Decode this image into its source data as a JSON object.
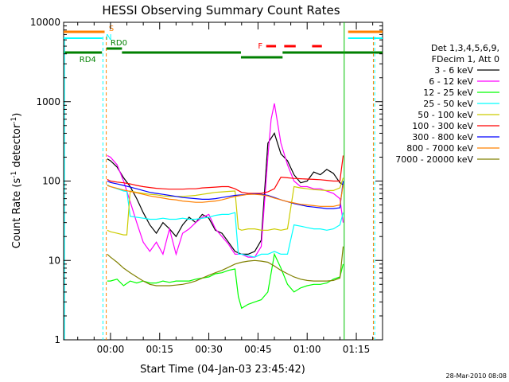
{
  "chart_data": {
    "type": "line",
    "title": "HESSI Observing Summary Count Rates",
    "xlabel": "Start Time (04-Jan-03 23:45:42)",
    "ylabel_main": "Count Rate (s",
    "ylabel_sup1": "-1",
    "ylabel_mid": " detector",
    "ylabel_sup2": "-1",
    "ylabel_end": ")",
    "yscale": "log",
    "ylim": [
      1,
      10000
    ],
    "xlim_minutes": [
      -14.3,
      83
    ],
    "x_ticks": [
      {
        "t": 0,
        "label": "00:00"
      },
      {
        "t": 15,
        "label": "00:15"
      },
      {
        "t": 30,
        "label": "00:30"
      },
      {
        "t": 45,
        "label": "00:45"
      },
      {
        "t": 60,
        "label": "01:00"
      },
      {
        "t": 75,
        "label": "01:15"
      }
    ],
    "y_ticks": [
      {
        "v": 1,
        "label": "1"
      },
      {
        "v": 10,
        "label": "10"
      },
      {
        "v": 100,
        "label": "100"
      },
      {
        "v": 1000,
        "label": "1000"
      },
      {
        "v": 10000,
        "label": "10000"
      }
    ],
    "legend_header": [
      "Det 1,3,4,5,6,9,",
      "FDecim 1, Att 0"
    ],
    "legend_position": "right",
    "series": [
      {
        "name": "3 - 6 keV",
        "color": "#000000",
        "x": [
          -1,
          0,
          2,
          4,
          6,
          8,
          10,
          12,
          14,
          16,
          18,
          20,
          22,
          24,
          26,
          28,
          30,
          32,
          34,
          36,
          38,
          40,
          42,
          44,
          46,
          48,
          50,
          52,
          54,
          56,
          58,
          60,
          62,
          64,
          66,
          68,
          70,
          71
        ],
        "y": [
          190,
          180,
          150,
          110,
          85,
          60,
          40,
          28,
          22,
          30,
          25,
          20,
          28,
          35,
          30,
          38,
          34,
          24,
          22,
          17,
          13,
          12,
          12,
          13,
          18,
          300,
          400,
          220,
          180,
          120,
          95,
          100,
          130,
          120,
          140,
          125,
          95,
          90
        ]
      },
      {
        "name": "6 - 12 keV",
        "color": "#ff00ff",
        "x": [
          -1,
          0,
          2,
          4,
          6,
          8,
          10,
          12,
          14,
          16,
          18,
          20,
          22,
          24,
          26,
          28,
          30,
          32,
          34,
          36,
          38,
          40,
          42,
          44,
          46,
          48,
          49,
          50,
          52,
          54,
          56,
          58,
          60,
          62,
          64,
          66,
          68,
          70,
          71
        ],
        "y": [
          210,
          200,
          160,
          100,
          55,
          30,
          17,
          13,
          17,
          12,
          25,
          12,
          22,
          25,
          30,
          35,
          38,
          25,
          20,
          16,
          12,
          12,
          11,
          11,
          15,
          200,
          600,
          950,
          300,
          160,
          100,
          85,
          85,
          80,
          80,
          75,
          70,
          60,
          30
        ]
      },
      {
        "name": "12 - 25 keV",
        "color": "#00ff00",
        "x": [
          -1,
          0,
          2,
          4,
          6,
          8,
          10,
          12,
          14,
          16,
          18,
          20,
          22,
          24,
          26,
          28,
          30,
          32,
          34,
          36,
          38,
          39,
          40,
          42,
          44,
          46,
          48,
          50,
          52,
          54,
          56,
          58,
          60,
          62,
          64,
          66,
          68,
          70,
          71
        ],
        "y": [
          5.5,
          5.5,
          5.8,
          4.8,
          5.5,
          5.2,
          5.5,
          5.2,
          5.2,
          5.5,
          5.3,
          5.5,
          5.5,
          5.5,
          5.8,
          6,
          6.2,
          6.8,
          7,
          7.5,
          7.8,
          3.5,
          2.5,
          2.8,
          3,
          3.2,
          4,
          12,
          8,
          5,
          4,
          4.5,
          4.8,
          5,
          5,
          5.2,
          5.8,
          6.2,
          9
        ]
      },
      {
        "name": "25 - 50 keV",
        "color": "#00ffff",
        "x": [
          -1,
          0,
          2,
          4,
          5,
          6,
          8,
          10,
          12,
          14,
          16,
          18,
          20,
          22,
          24,
          26,
          28,
          30,
          32,
          34,
          36,
          38,
          39,
          40,
          42,
          44,
          46,
          48,
          50,
          52,
          54,
          56,
          58,
          60,
          62,
          64,
          66,
          68,
          70,
          71
        ],
        "y": [
          90,
          85,
          80,
          75,
          74,
          36,
          35,
          34,
          33,
          33,
          34,
          33,
          33,
          34,
          33,
          33,
          34,
          35,
          37,
          38,
          38,
          40,
          12,
          12,
          11.5,
          11,
          12,
          12,
          13,
          12,
          12,
          28,
          27,
          26,
          25,
          25,
          24,
          25,
          28,
          40
        ]
      },
      {
        "name": "50 - 100 keV",
        "color": "#cccc00",
        "x": [
          -1,
          0,
          2,
          4,
          5,
          6,
          8,
          10,
          12,
          14,
          16,
          18,
          20,
          22,
          24,
          26,
          28,
          30,
          32,
          34,
          36,
          38,
          39,
          40,
          42,
          44,
          46,
          48,
          50,
          52,
          54,
          56,
          58,
          60,
          62,
          64,
          66,
          68,
          70,
          71
        ],
        "y": [
          24,
          23,
          22,
          21,
          21,
          75,
          72,
          70,
          68,
          67,
          65,
          64,
          64,
          64,
          65,
          66,
          68,
          70,
          72,
          73,
          74,
          75,
          25,
          24,
          25,
          25,
          24,
          24,
          25,
          24,
          25,
          85,
          82,
          80,
          78,
          77,
          76,
          76,
          82,
          110
        ]
      },
      {
        "name": "100 - 300 keV",
        "color": "#ff0000",
        "x": [
          -1,
          0,
          2,
          4,
          6,
          8,
          10,
          12,
          14,
          16,
          18,
          20,
          22,
          24,
          26,
          28,
          30,
          32,
          34,
          36,
          38,
          40,
          42,
          44,
          46,
          48,
          50,
          52,
          54,
          56,
          58,
          60,
          62,
          64,
          66,
          68,
          70,
          71
        ],
        "y": [
          105,
          100,
          97,
          95,
          92,
          88,
          85,
          83,
          81,
          80,
          79,
          79,
          79,
          80,
          80,
          82,
          83,
          84,
          85,
          85,
          80,
          72,
          70,
          70,
          70,
          73,
          80,
          112,
          110,
          108,
          107,
          106,
          105,
          104,
          102,
          100,
          100,
          210
        ]
      },
      {
        "name": "300 - 800 keV",
        "color": "#0000ff",
        "x": [
          -1,
          0,
          2,
          4,
          6,
          8,
          10,
          12,
          14,
          16,
          18,
          20,
          22,
          24,
          26,
          28,
          30,
          32,
          34,
          36,
          38,
          40,
          42,
          44,
          46,
          48,
          50,
          52,
          54,
          56,
          58,
          60,
          62,
          64,
          66,
          68,
          70,
          71
        ],
        "y": [
          100,
          96,
          92,
          88,
          84,
          80,
          76,
          72,
          70,
          68,
          66,
          64,
          62,
          61,
          60,
          59,
          59,
          60,
          62,
          64,
          66,
          67,
          68,
          69,
          68,
          66,
          62,
          58,
          55,
          52,
          50,
          48,
          47,
          46,
          45,
          45,
          46,
          100
        ]
      },
      {
        "name": "800 - 7000 keV",
        "color": "#ff8000",
        "x": [
          -1,
          0,
          2,
          4,
          6,
          8,
          10,
          12,
          14,
          16,
          18,
          20,
          22,
          24,
          26,
          28,
          30,
          32,
          34,
          36,
          38,
          40,
          42,
          44,
          46,
          48,
          50,
          52,
          54,
          56,
          58,
          60,
          62,
          64,
          66,
          68,
          70,
          71
        ],
        "y": [
          88,
          85,
          81,
          77,
          74,
          71,
          68,
          65,
          63,
          61,
          59,
          58,
          56,
          55,
          54,
          54,
          55,
          56,
          58,
          61,
          64,
          66,
          68,
          68,
          67,
          65,
          61,
          58,
          55,
          53,
          51,
          50,
          49,
          48,
          48,
          48,
          50,
          90
        ]
      },
      {
        "name": "7000 - 20000 keV",
        "color": "#808000",
        "x": [
          -1,
          0,
          2,
          4,
          6,
          8,
          10,
          12,
          14,
          16,
          18,
          20,
          22,
          24,
          26,
          28,
          30,
          32,
          34,
          36,
          38,
          40,
          42,
          44,
          46,
          48,
          50,
          52,
          54,
          56,
          58,
          60,
          62,
          64,
          66,
          68,
          70,
          71
        ],
        "y": [
          12,
          11,
          9.5,
          8,
          7,
          6.2,
          5.5,
          5,
          4.8,
          4.8,
          4.8,
          4.9,
          5,
          5.2,
          5.5,
          6,
          6.5,
          7,
          7.5,
          8.2,
          9,
          9.5,
          9.8,
          10,
          9.8,
          9.5,
          8.5,
          7.5,
          6.8,
          6.2,
          5.8,
          5.6,
          5.5,
          5.5,
          5.5,
          5.6,
          6,
          15
        ]
      }
    ],
    "annotations": [
      {
        "label": "S",
        "color": "#ff8000"
      },
      {
        "label": "N",
        "color": "#00ffff"
      },
      {
        "label": "RD4",
        "color": "#008000"
      },
      {
        "label": "RD0",
        "color": "#008000"
      },
      {
        "label": "F",
        "color": "#ff0000"
      }
    ],
    "timestamp": "28-Mar-2010 08:08"
  }
}
